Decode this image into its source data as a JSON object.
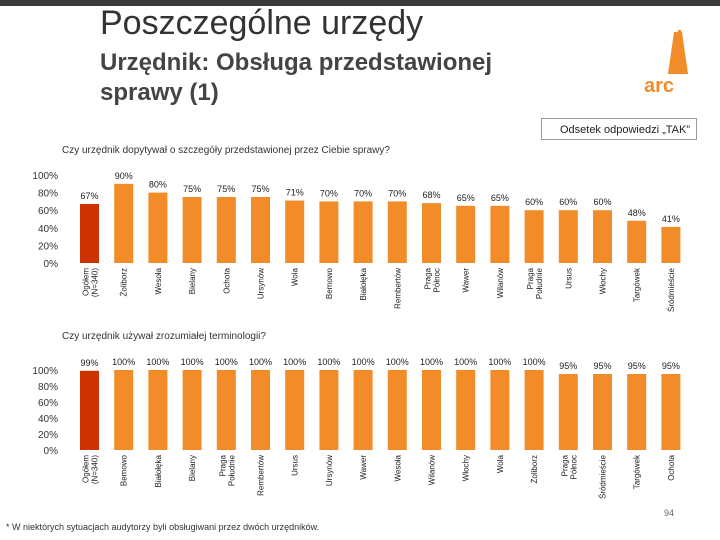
{
  "header": {
    "title": "Poszczególne urzędy",
    "subtitle": "Urzędnik: Obsługa przedstawionej sprawy (1)",
    "logo_text": "arc"
  },
  "legend_note": "Odsetek odpowiedzi „TAK”",
  "footnote": "* W niektórych sytuacjach audytorzy byli obsługiwani przez dwóch urzędników.",
  "page_number": "94",
  "colors": {
    "highlight": "#cc3300",
    "bar": "#f28c28",
    "text": "#222222"
  },
  "chart_data": [
    {
      "type": "bar",
      "title": "Czy urzędnik dopytywał o szczegóły przedstawionej przez Ciebie sprawy?",
      "ylim": [
        0,
        100
      ],
      "yticks": [
        "100%",
        "80%",
        "60%",
        "40%",
        "20%",
        "0%"
      ],
      "categories": [
        "Ogółem (N=340)",
        "Żoliborz",
        "Wesoła",
        "Bielany",
        "Ochota",
        "Ursynów",
        "Wola",
        "Bemowo",
        "Białołęka",
        "Rembertów",
        "Praga Północ",
        "Wawer",
        "Wilanów",
        "Praga Południe",
        "Ursus",
        "Włochy",
        "Targówek",
        "Śródmieście"
      ],
      "values": [
        67,
        90,
        80,
        75,
        75,
        75,
        71,
        70,
        70,
        70,
        68,
        65,
        65,
        60,
        60,
        60,
        48,
        41
      ],
      "labels": [
        "67%",
        "90%",
        "80%",
        "75%",
        "75%",
        "75%",
        "71%",
        "70%",
        "70%",
        "70%",
        "68%",
        "65%",
        "65%",
        "60%",
        "60%",
        "60%",
        "48%",
        "41%"
      ],
      "highlight_index": 0
    },
    {
      "type": "bar",
      "title": "Czy urzędnik używał zrozumiałej terminologii?",
      "ylim": [
        0,
        100
      ],
      "yticks": [
        "100%",
        "80%",
        "60%",
        "40%",
        "20%",
        "0%"
      ],
      "categories": [
        "Ogółem (N=340)",
        "Bemowo",
        "Białołęka",
        "Bielany",
        "Praga Południe",
        "Rembertów",
        "Ursus",
        "Ursynów",
        "Wawer",
        "Wesoła",
        "Wilanów",
        "Włochy",
        "Wola",
        "Żoliborz",
        "Praga Północ",
        "Śródmieście",
        "Targówek",
        "Ochota"
      ],
      "values": [
        99,
        100,
        100,
        100,
        100,
        100,
        100,
        100,
        100,
        100,
        100,
        100,
        100,
        100,
        95,
        95,
        95,
        95
      ],
      "labels": [
        "99%",
        "100%",
        "100%",
        "100%",
        "100%",
        "100%",
        "100%",
        "100%",
        "100%",
        "100%",
        "100%",
        "100%",
        "100%",
        "100%",
        "95%",
        "95%",
        "95%",
        "95%"
      ],
      "highlight_index": 0
    }
  ]
}
